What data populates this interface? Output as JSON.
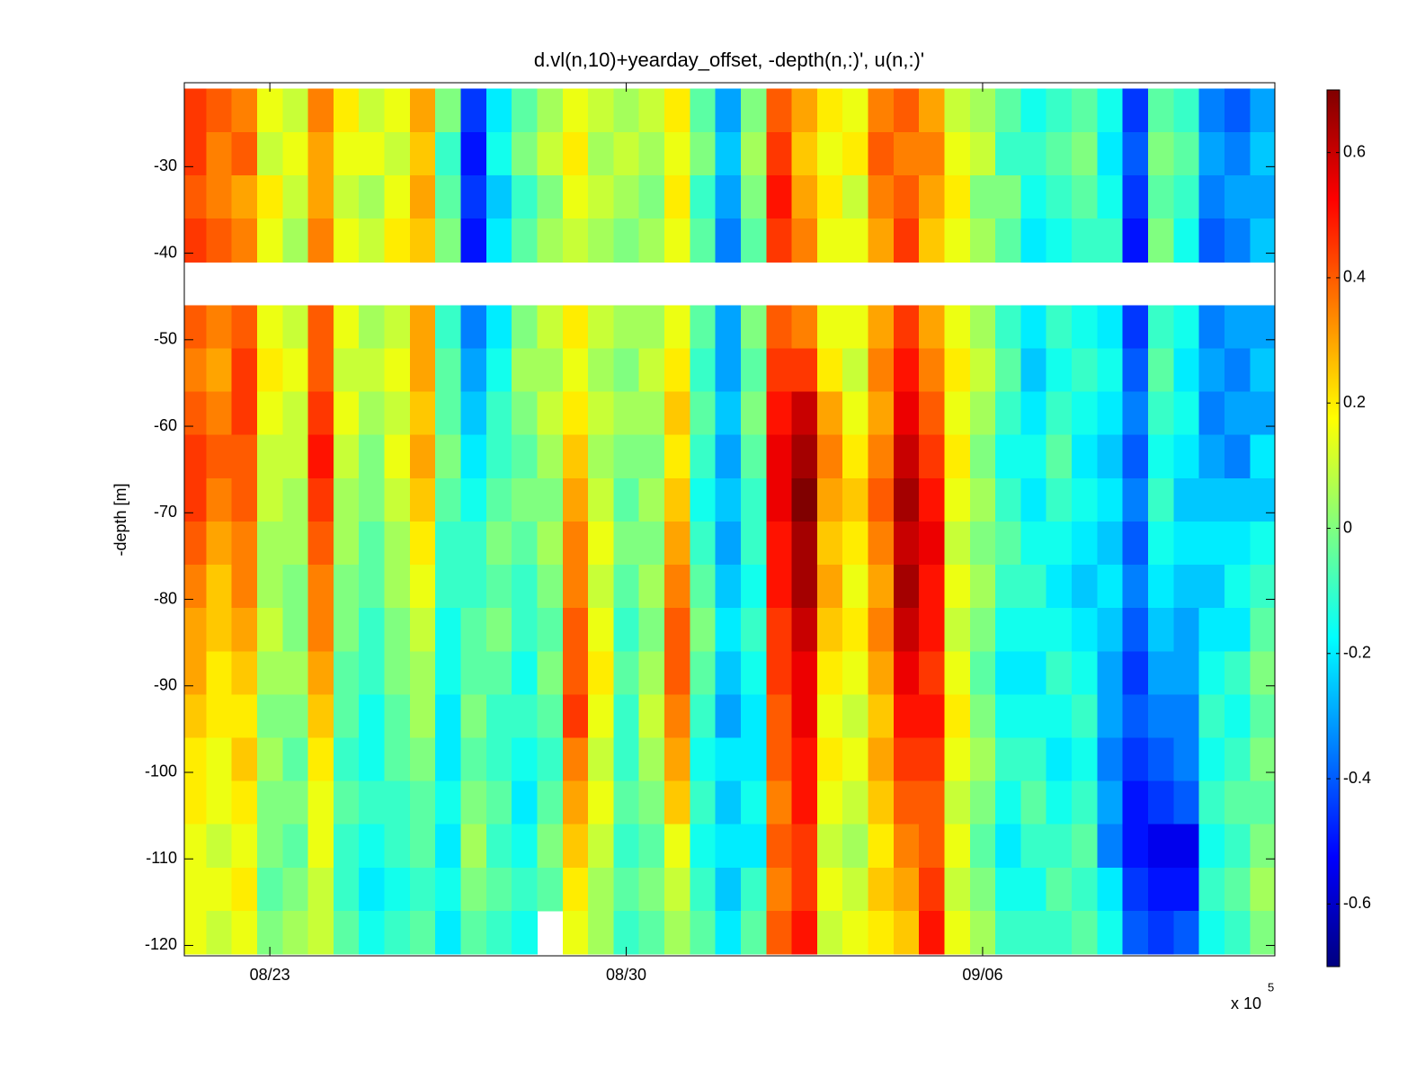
{
  "chart_data": {
    "type": "heatmap",
    "title": "d.vl(n,10)+yearday_offset, -depth(n,:)', u(n,:)'",
    "ylabel": "-depth [m]",
    "x_multiplier": {
      "base": "x 10",
      "exponent": 5
    },
    "colormap": "jet",
    "x": [
      233.5,
      234,
      234.5,
      235,
      235.5,
      236,
      236.5,
      237,
      237.5,
      238,
      238.5,
      239,
      239.5,
      240,
      240.5,
      241,
      241.5,
      242,
      242.5,
      243,
      243.5,
      244,
      244.5,
      245,
      245.5,
      246,
      246.5,
      247,
      247.5,
      248,
      248.5,
      249,
      249.5,
      250,
      250.5,
      251,
      251.5,
      252,
      252.5,
      253,
      253.5,
      254,
      254.5
    ],
    "y": [
      -23.5,
      -28.5,
      -33.5,
      -38.5,
      -43.5,
      -48.5,
      -53.5,
      -58.5,
      -63.5,
      -68.5,
      -73.5,
      -78.5,
      -83.5,
      -88.5,
      -93.5,
      -98.5,
      -103.5,
      -108.5,
      -113.5,
      -118.5
    ],
    "values": [
      [
        0.45,
        0.45,
        0.4,
        0.45,
        null,
        0.4,
        0.35,
        0.4,
        0.45,
        0.45,
        0.4,
        0.35,
        0.3,
        0.3,
        0.25,
        0.2,
        0.2,
        0.15,
        0.15,
        0.15
      ],
      [
        0.4,
        0.35,
        0.35,
        0.4,
        null,
        0.35,
        0.3,
        0.35,
        0.4,
        0.35,
        0.3,
        0.25,
        0.25,
        0.2,
        0.2,
        0.15,
        0.15,
        0.1,
        0.15,
        0.1
      ],
      [
        0.35,
        0.4,
        0.3,
        0.35,
        null,
        0.4,
        0.45,
        0.45,
        0.4,
        0.4,
        0.35,
        0.35,
        0.3,
        0.25,
        0.2,
        0.25,
        0.2,
        0.15,
        0.2,
        0.15
      ],
      [
        0.15,
        0.1,
        0.2,
        0.15,
        null,
        0.15,
        0.2,
        0.15,
        0.1,
        0.1,
        0.05,
        0.05,
        0.1,
        0.05,
        0,
        0.05,
        0,
        0,
        -0.05,
        0
      ],
      [
        0.1,
        0.15,
        0.1,
        0.05,
        null,
        0.1,
        0.15,
        0.1,
        0.1,
        0.05,
        0.05,
        0,
        0,
        0.05,
        0,
        -0.05,
        0,
        -0.05,
        0,
        0.05
      ],
      [
        0.35,
        0.3,
        0.3,
        0.35,
        null,
        0.4,
        0.4,
        0.45,
        0.5,
        0.45,
        0.4,
        0.35,
        0.35,
        0.3,
        0.25,
        0.2,
        0.15,
        0.15,
        0.1,
        0.1
      ],
      [
        0.2,
        0.15,
        0.1,
        0.15,
        null,
        0.15,
        0.1,
        0.15,
        0.1,
        0.05,
        0.05,
        0,
        0,
        -0.05,
        -0.05,
        -0.1,
        -0.05,
        -0.1,
        -0.1,
        -0.05
      ],
      [
        0.1,
        0.15,
        0.05,
        0.1,
        null,
        0.05,
        0.1,
        0.05,
        0,
        0,
        -0.05,
        -0.05,
        -0.1,
        -0.1,
        -0.15,
        -0.15,
        -0.1,
        -0.15,
        -0.2,
        -0.15
      ],
      [
        0.15,
        0.1,
        0.15,
        0.2,
        null,
        0.1,
        0.15,
        0.1,
        0.15,
        0.1,
        0.05,
        0.05,
        0,
        0,
        -0.05,
        -0.05,
        -0.1,
        -0.1,
        -0.15,
        -0.1
      ],
      [
        0.3,
        0.25,
        0.3,
        0.25,
        null,
        0.3,
        0.3,
        0.25,
        0.3,
        0.25,
        0.2,
        0.15,
        0.1,
        0.05,
        0.05,
        0,
        -0.05,
        -0.05,
        -0.1,
        -0.05
      ],
      [
        0,
        -0.1,
        -0.05,
        0,
        null,
        -0.1,
        -0.05,
        -0.05,
        0,
        -0.05,
        -0.1,
        -0.1,
        -0.15,
        -0.15,
        -0.2,
        -0.2,
        -0.15,
        -0.2,
        -0.15,
        -0.2
      ],
      [
        -0.45,
        -0.5,
        -0.45,
        -0.5,
        null,
        -0.35,
        -0.3,
        -0.25,
        -0.2,
        -0.15,
        -0.1,
        -0.1,
        -0.05,
        -0.05,
        0,
        -0.05,
        0,
        0.05,
        0,
        -0.05
      ],
      [
        -0.2,
        -0.15,
        -0.25,
        -0.2,
        null,
        -0.2,
        -0.15,
        -0.1,
        -0.1,
        -0.05,
        0,
        -0.05,
        0,
        -0.05,
        -0.1,
        -0.1,
        -0.05,
        -0.1,
        -0.05,
        -0.1
      ],
      [
        -0.05,
        0,
        -0.1,
        -0.05,
        null,
        0,
        0.05,
        0,
        -0.05,
        0,
        -0.05,
        -0.1,
        -0.1,
        -0.15,
        -0.1,
        -0.15,
        -0.2,
        -0.15,
        -0.1,
        -0.15
      ],
      [
        0.05,
        0.1,
        0,
        0.05,
        null,
        0.1,
        0.05,
        0.1,
        0.05,
        0,
        0.05,
        0,
        -0.05,
        0,
        -0.05,
        -0.1,
        -0.05,
        0,
        -0.05,
        null
      ],
      [
        0.15,
        0.2,
        0.15,
        0.1,
        null,
        0.2,
        0.15,
        0.2,
        0.25,
        0.3,
        0.35,
        0.35,
        0.4,
        0.4,
        0.45,
        0.35,
        0.3,
        0.25,
        0.2,
        0.15
      ],
      [
        0.1,
        0.05,
        0.1,
        0.05,
        null,
        0.1,
        0.05,
        0.1,
        0.05,
        0.1,
        0.15,
        0.1,
        0.15,
        0.2,
        0.15,
        0.1,
        0.15,
        0.1,
        0.05,
        0.05
      ],
      [
        0.05,
        0.1,
        0.05,
        0,
        null,
        0.05,
        0,
        0.05,
        0,
        -0.05,
        0,
        -0.05,
        -0.1,
        -0.05,
        -0.1,
        -0.1,
        -0.05,
        -0.1,
        -0.05,
        -0.1
      ],
      [
        0.1,
        0.05,
        0,
        0.05,
        null,
        0.05,
        0.1,
        0.05,
        0,
        0.05,
        0,
        0.05,
        0,
        0.05,
        0.1,
        0.05,
        0,
        -0.05,
        0,
        -0.05
      ],
      [
        0.2,
        0.15,
        0.2,
        0.15,
        null,
        0.15,
        0.2,
        0.25,
        0.2,
        0.25,
        0.3,
        0.35,
        0.4,
        0.4,
        0.35,
        0.3,
        0.25,
        0.15,
        0.1,
        0.05
      ],
      [
        -0.05,
        0,
        -0.1,
        -0.05,
        null,
        -0.05,
        -0.1,
        -0.05,
        -0.1,
        -0.15,
        -0.1,
        -0.05,
        0,
        -0.05,
        -0.1,
        -0.15,
        -0.1,
        -0.15,
        -0.1,
        -0.05
      ],
      [
        -0.3,
        -0.25,
        -0.3,
        -0.35,
        null,
        -0.3,
        -0.3,
        -0.25,
        -0.3,
        -0.25,
        -0.3,
        -0.25,
        -0.2,
        -0.25,
        -0.3,
        -0.2,
        -0.25,
        -0.2,
        -0.25,
        -0.2
      ],
      [
        0,
        0.05,
        0,
        -0.05,
        null,
        0,
        -0.05,
        0,
        -0.05,
        -0.1,
        -0.1,
        -0.15,
        -0.1,
        -0.15,
        -0.2,
        -0.2,
        -0.15,
        -0.2,
        -0.1,
        -0.05
      ],
      [
        0.4,
        0.45,
        0.5,
        0.45,
        null,
        0.4,
        0.45,
        0.5,
        0.55,
        0.55,
        0.5,
        0.5,
        0.45,
        0.45,
        0.4,
        0.4,
        0.35,
        0.4,
        0.35,
        0.4
      ],
      [
        0.3,
        0.25,
        0.3,
        0.35,
        null,
        0.35,
        0.45,
        0.6,
        0.65,
        0.7,
        0.65,
        0.65,
        0.6,
        0.55,
        0.55,
        0.5,
        0.5,
        0.45,
        0.45,
        0.5
      ],
      [
        0.2,
        0.15,
        0.2,
        0.15,
        null,
        0.15,
        0.2,
        0.3,
        0.35,
        0.3,
        0.25,
        0.3,
        0.25,
        0.2,
        0.15,
        0.2,
        0.15,
        0.1,
        0.15,
        0.1
      ],
      [
        0.15,
        0.2,
        0.1,
        0.15,
        null,
        0.15,
        0.1,
        0.15,
        0.2,
        0.25,
        0.2,
        0.15,
        0.2,
        0.15,
        0.1,
        0.15,
        0.1,
        0.05,
        0.1,
        0.15
      ],
      [
        0.35,
        0.4,
        0.35,
        0.3,
        null,
        0.3,
        0.35,
        0.3,
        0.35,
        0.4,
        0.35,
        0.3,
        0.35,
        0.3,
        0.25,
        0.3,
        0.25,
        0.2,
        0.25,
        0.2
      ],
      [
        0.4,
        0.35,
        0.4,
        0.45,
        null,
        0.45,
        0.5,
        0.55,
        0.6,
        0.65,
        0.6,
        0.65,
        0.6,
        0.55,
        0.5,
        0.45,
        0.4,
        0.35,
        0.3,
        0.25
      ],
      [
        0.3,
        0.35,
        0.3,
        0.25,
        null,
        0.3,
        0.35,
        0.4,
        0.45,
        0.5,
        0.55,
        0.5,
        0.5,
        0.45,
        0.5,
        0.45,
        0.4,
        0.4,
        0.45,
        0.5
      ],
      [
        0.1,
        0.15,
        0.2,
        0.15,
        null,
        0.15,
        0.2,
        0.15,
        0.2,
        0.15,
        0.1,
        0.15,
        0.1,
        0.15,
        0.2,
        0.15,
        0.1,
        0.15,
        0.1,
        0.15
      ],
      [
        0.05,
        0.1,
        0,
        0.05,
        null,
        0.05,
        0.1,
        0.05,
        0,
        0.05,
        0,
        0.05,
        0,
        -0.05,
        0,
        0.05,
        0,
        -0.05,
        0,
        0.05
      ],
      [
        -0.05,
        -0.1,
        0,
        -0.05,
        null,
        -0.1,
        -0.05,
        -0.1,
        -0.15,
        -0.1,
        -0.05,
        -0.1,
        -0.15,
        -0.2,
        -0.15,
        -0.1,
        -0.15,
        -0.2,
        -0.15,
        -0.1
      ],
      [
        -0.15,
        -0.1,
        -0.15,
        -0.2,
        null,
        -0.2,
        -0.25,
        -0.2,
        -0.15,
        -0.2,
        -0.15,
        -0.1,
        -0.15,
        -0.2,
        -0.15,
        -0.1,
        -0.05,
        -0.1,
        -0.15,
        -0.1
      ],
      [
        -0.1,
        -0.05,
        -0.1,
        -0.15,
        null,
        -0.1,
        -0.15,
        -0.1,
        -0.05,
        -0.1,
        -0.15,
        -0.2,
        -0.15,
        -0.1,
        -0.15,
        -0.2,
        -0.15,
        -0.1,
        -0.05,
        -0.1
      ],
      [
        -0.05,
        0,
        -0.05,
        -0.1,
        null,
        -0.15,
        -0.1,
        -0.15,
        -0.2,
        -0.15,
        -0.2,
        -0.25,
        -0.2,
        -0.15,
        -0.1,
        -0.15,
        -0.1,
        -0.05,
        -0.1,
        -0.05
      ],
      [
        -0.15,
        -0.2,
        -0.15,
        -0.1,
        null,
        -0.2,
        -0.15,
        -0.2,
        -0.25,
        -0.2,
        -0.25,
        -0.2,
        -0.25,
        -0.3,
        -0.3,
        -0.35,
        -0.3,
        -0.35,
        -0.2,
        -0.15
      ],
      [
        -0.45,
        -0.4,
        -0.45,
        -0.5,
        null,
        -0.45,
        -0.4,
        -0.35,
        -0.4,
        -0.35,
        -0.4,
        -0.35,
        -0.4,
        -0.45,
        -0.4,
        -0.45,
        -0.5,
        -0.5,
        -0.45,
        -0.4
      ],
      [
        -0.05,
        0,
        -0.05,
        0,
        null,
        -0.1,
        -0.05,
        -0.1,
        -0.15,
        -0.1,
        -0.15,
        -0.2,
        -0.25,
        -0.3,
        -0.35,
        -0.4,
        -0.45,
        -0.55,
        -0.5,
        -0.45
      ],
      [
        -0.1,
        -0.05,
        -0.1,
        -0.15,
        null,
        -0.15,
        -0.2,
        -0.15,
        -0.2,
        -0.25,
        -0.2,
        -0.25,
        -0.3,
        -0.3,
        -0.35,
        -0.35,
        -0.4,
        -0.55,
        -0.5,
        -0.4
      ],
      [
        -0.35,
        -0.3,
        -0.35,
        -0.4,
        null,
        -0.35,
        -0.3,
        -0.35,
        -0.3,
        -0.25,
        -0.2,
        -0.25,
        -0.2,
        -0.15,
        -0.1,
        -0.15,
        -0.1,
        -0.15,
        -0.1,
        -0.15
      ],
      [
        -0.4,
        -0.35,
        -0.3,
        -0.35,
        null,
        -0.3,
        -0.35,
        -0.3,
        -0.35,
        -0.25,
        -0.2,
        -0.15,
        -0.2,
        -0.1,
        -0.15,
        -0.1,
        -0.05,
        -0.1,
        -0.05,
        -0.1
      ],
      [
        -0.3,
        -0.25,
        -0.3,
        -0.25,
        null,
        -0.3,
        -0.25,
        -0.3,
        -0.2,
        -0.25,
        -0.15,
        -0.1,
        -0.05,
        0,
        -0.05,
        0,
        -0.05,
        0,
        0.05,
        0
      ]
    ],
    "xlim": [
      233.32,
      254.74
    ],
    "xticks": [
      {
        "value": 235,
        "label": "08/23"
      },
      {
        "value": 242,
        "label": "08/30"
      },
      {
        "value": 249,
        "label": "09/06"
      }
    ],
    "ylim": [
      -121.2,
      -20.3
    ],
    "yticks": [
      -120,
      -110,
      -100,
      -90,
      -80,
      -70,
      -60,
      -50,
      -40,
      -30
    ],
    "clim": [
      -0.7,
      0.7
    ],
    "cticks": [
      -0.6,
      -0.4,
      -0.2,
      0,
      0.2,
      0.4,
      0.6
    ]
  }
}
